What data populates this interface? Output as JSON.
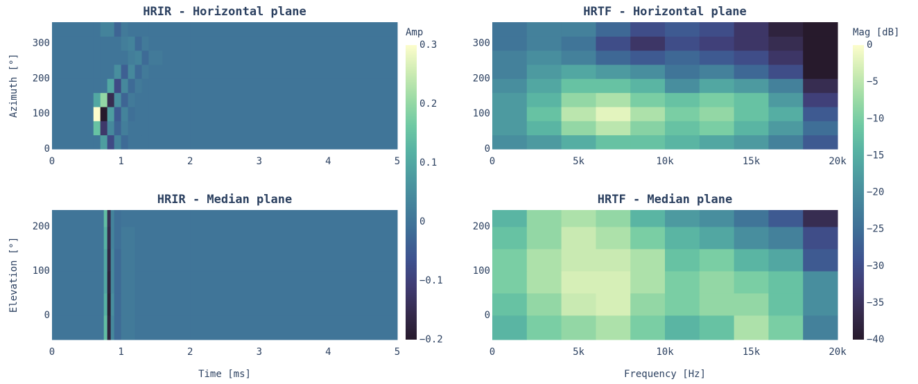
{
  "chart_data": [
    {
      "type": "heatmap",
      "title": "HRIR - Horizontal plane",
      "ylabel": "Azimuth [°]",
      "xbins": [
        0,
        0.5,
        0.6,
        0.7,
        0.8,
        0.9,
        1.0,
        1.1,
        1.2,
        1.3,
        1.4,
        1.6,
        2,
        5
      ],
      "ybins": [
        0,
        40,
        80,
        120,
        160,
        200,
        240,
        280,
        320,
        360
      ],
      "z": [
        [
          0,
          0,
          0,
          0.08,
          -0.08,
          0.03,
          -0.02,
          0,
          0,
          0,
          0,
          0,
          0
        ],
        [
          0,
          0,
          0.15,
          -0.12,
          0.04,
          -0.03,
          0.02,
          0,
          0,
          0,
          0,
          0,
          0
        ],
        [
          0,
          0,
          0.3,
          -0.2,
          0.08,
          -0.05,
          0.03,
          -0.01,
          0,
          0,
          0,
          0,
          0
        ],
        [
          0,
          0,
          0.1,
          0.2,
          -0.15,
          0.05,
          -0.03,
          0.01,
          0,
          0,
          0,
          0,
          0
        ],
        [
          0,
          0,
          0,
          0,
          0.1,
          -0.08,
          0.04,
          -0.02,
          0.01,
          0,
          0,
          0,
          0
        ],
        [
          0,
          0,
          0,
          0,
          0,
          0.05,
          -0.04,
          0.04,
          -0.02,
          0.01,
          0,
          0,
          0
        ],
        [
          0,
          0,
          0,
          0,
          0,
          0,
          0,
          0.02,
          0.03,
          -0.02,
          0.01,
          0,
          0
        ],
        [
          0,
          0,
          0,
          0,
          0,
          0,
          0.02,
          0.03,
          -0.02,
          0.01,
          0,
          0,
          0
        ],
        [
          0,
          0,
          0,
          0.03,
          0.03,
          -0.03,
          0.01,
          0,
          0,
          0,
          0,
          0,
          0
        ]
      ],
      "xlim": [
        0,
        5
      ],
      "xticks": [
        0,
        1,
        2,
        3,
        4,
        5
      ],
      "ylim": [
        0,
        360
      ],
      "yticks": [
        0,
        100,
        200,
        300
      ],
      "zlim": [
        -0.2,
        0.3
      ],
      "colorbar": {
        "title": "Amp",
        "ticks": [
          {
            "value": -0.2,
            "label": "−0.2"
          },
          {
            "value": -0.1,
            "label": "−0.1"
          },
          0,
          0.1,
          0.2,
          0.3
        ]
      }
    },
    {
      "type": "heatmap",
      "title": "HRIR - Median plane",
      "ylabel": "Elevation [°]",
      "xlabel": "Time [ms]",
      "xbins": [
        0,
        0.75,
        0.8,
        0.85,
        0.9,
        1.0,
        1.2,
        2,
        5
      ],
      "ybins": [
        -55,
        0,
        50,
        100,
        150,
        200,
        237.5
      ],
      "z": [
        [
          0,
          0.14,
          -0.18,
          0.04,
          -0.02,
          0.01,
          0,
          0
        ],
        [
          0,
          0.12,
          -0.19,
          0.05,
          -0.02,
          0.01,
          0,
          0
        ],
        [
          0,
          0.1,
          -0.18,
          0.04,
          -0.02,
          0.01,
          0,
          0
        ],
        [
          0,
          0.1,
          -0.17,
          0.04,
          -0.02,
          0.01,
          0,
          0
        ],
        [
          0,
          0.12,
          -0.16,
          0.03,
          -0.01,
          0.01,
          0,
          0
        ],
        [
          0,
          0.14,
          -0.15,
          0.03,
          -0.01,
          0,
          0,
          0
        ]
      ],
      "xlim": [
        0,
        5
      ],
      "xticks": [
        0,
        1,
        2,
        3,
        4,
        5
      ],
      "ylim": [
        -55,
        237.5
      ],
      "yticks": [
        0,
        100,
        200
      ],
      "zlim": [
        -0.2,
        0.3
      ]
    },
    {
      "type": "heatmap",
      "title": "HRTF - Horizontal plane",
      "xbins": [
        0,
        2000,
        4000,
        6000,
        8000,
        10000,
        12000,
        14000,
        16000,
        18000,
        20000
      ],
      "ybins": [
        0,
        40,
        80,
        120,
        160,
        200,
        240,
        280,
        320,
        360
      ],
      "z": [
        [
          -20,
          -18,
          -15,
          -12,
          -12,
          -14,
          -16,
          -18,
          -22,
          -28
        ],
        [
          -18,
          -14,
          -8,
          -5,
          -9,
          -12,
          -10,
          -14,
          -18,
          -25
        ],
        [
          -18,
          -12,
          -5,
          -2,
          -6,
          -10,
          -8,
          -12,
          -15,
          -28
        ],
        [
          -18,
          -14,
          -8,
          -6,
          -10,
          -12,
          -10,
          -12,
          -18,
          -32
        ],
        [
          -20,
          -16,
          -12,
          -12,
          -14,
          -20,
          -16,
          -18,
          -22,
          -36
        ],
        [
          -22,
          -18,
          -16,
          -18,
          -20,
          -24,
          -22,
          -26,
          -30,
          -40
        ],
        [
          -22,
          -20,
          -22,
          -26,
          -28,
          -26,
          -28,
          -30,
          -34,
          -40
        ],
        [
          -24,
          -22,
          -24,
          -30,
          -34,
          -30,
          -32,
          -34,
          -36,
          -40
        ],
        [
          -24,
          -22,
          -22,
          -26,
          -30,
          -28,
          -30,
          -34,
          -38,
          -40
        ]
      ],
      "xlim": [
        0,
        20000
      ],
      "xticks": [
        0,
        {
          "value": 5000,
          "label": "5k"
        },
        {
          "value": 10000,
          "label": "10k"
        },
        {
          "value": 15000,
          "label": "15k"
        },
        {
          "value": 20000,
          "label": "20k"
        }
      ],
      "ylim": [
        0,
        360
      ],
      "yticks": [
        0,
        100,
        200,
        300
      ],
      "zlim": [
        -40,
        0
      ],
      "colorbar": {
        "title": "Mag [dB]",
        "ticks": [
          {
            "value": -40,
            "label": "−40"
          },
          {
            "value": -35,
            "label": "−35"
          },
          {
            "value": -30,
            "label": "−30"
          },
          {
            "value": -25,
            "label": "−25"
          },
          {
            "value": -20,
            "label": "−20"
          },
          {
            "value": -15,
            "label": "−15"
          },
          {
            "value": -10,
            "label": "−10"
          },
          {
            "value": -5,
            "label": "−5"
          },
          0
        ]
      }
    },
    {
      "type": "heatmap",
      "title": "HRTF - Median plane",
      "xlabel": "Frequency [Hz]",
      "xbins": [
        0,
        2000,
        4000,
        6000,
        8000,
        10000,
        12000,
        14000,
        16000,
        18000,
        20000
      ],
      "ybins": [
        -55,
        0,
        50,
        100,
        150,
        200,
        237.5
      ],
      "z": [
        [
          -14,
          -10,
          -8,
          -6,
          -10,
          -14,
          -12,
          -6,
          -10,
          -22
        ],
        [
          -12,
          -8,
          -4,
          -3,
          -8,
          -10,
          -8,
          -8,
          -12,
          -20
        ],
        [
          -10,
          -6,
          -3,
          -3,
          -6,
          -10,
          -8,
          -10,
          -12,
          -20
        ],
        [
          -10,
          -6,
          -4,
          -4,
          -6,
          -12,
          -10,
          -14,
          -16,
          -28
        ],
        [
          -12,
          -8,
          -4,
          -6,
          -10,
          -14,
          -16,
          -20,
          -22,
          -30
        ],
        [
          -14,
          -8,
          -6,
          -8,
          -14,
          -18,
          -20,
          -24,
          -28,
          -36
        ]
      ],
      "xlim": [
        0,
        20000
      ],
      "xticks": [
        0,
        {
          "value": 5000,
          "label": "5k"
        },
        {
          "value": 10000,
          "label": "10k"
        },
        {
          "value": 15000,
          "label": "15k"
        },
        {
          "value": 20000,
          "label": "20k"
        }
      ],
      "ylim": [
        -55,
        237.5
      ],
      "yticks": [
        0,
        100,
        200
      ],
      "zlim": [
        -40,
        0
      ]
    }
  ],
  "colorscale": [
    "#271a2c",
    "#362b4d",
    "#403c73",
    "#3e528f",
    "#3e6c96",
    "#44829b",
    "#4c99a0",
    "#56b1a3",
    "#6fc9a3",
    "#9cdba5",
    "#ceecb3",
    "#fdfdcc"
  ]
}
